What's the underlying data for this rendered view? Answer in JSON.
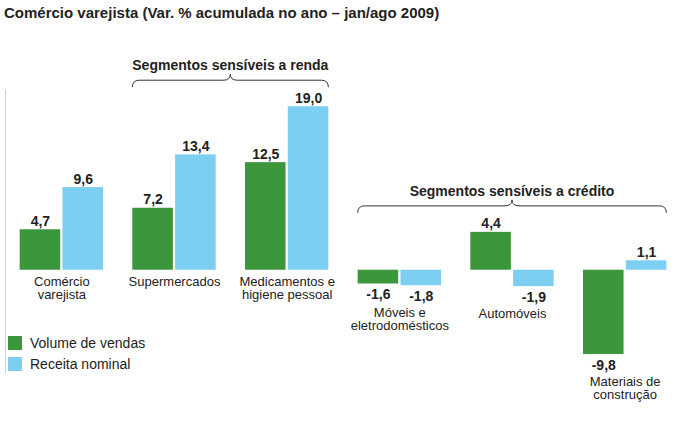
{
  "chart_data": {
    "type": "bar",
    "title": "Comércio varejista (Var. % acumulada no ano – jan/ago 2009)",
    "categories": [
      "Comércio varejista",
      "Supermercados",
      "Medicamentos e higiene pessoal",
      "Móveis e eletrodomésticos",
      "Automóveis",
      "Materiais de construção"
    ],
    "series": [
      {
        "name": "Volume de vendas",
        "color": "#3c963c",
        "values": [
          4.7,
          7.2,
          12.5,
          -1.6,
          4.4,
          -9.8
        ],
        "value_labels": [
          "4,7",
          "7,2",
          "12,5",
          "-1,6",
          "4,4",
          "-9,8"
        ]
      },
      {
        "name": "Receita nominal",
        "color": "#7dcff2",
        "values": [
          9.6,
          13.4,
          19.0,
          -1.8,
          -1.9,
          1.1
        ],
        "value_labels": [
          "9,6",
          "13,4",
          "19,0",
          "-1,8",
          "-1,9",
          "1,1"
        ]
      }
    ],
    "annotations": [
      {
        "text": "Segmentos sensíveis a renda",
        "categories": [
          "Supermercados",
          "Medicamentos e higiene pessoal"
        ]
      },
      {
        "text": "Segmentos sensíveis a crédito",
        "categories": [
          "Móveis e eletrodomésticos",
          "Automóveis",
          "Materiais de construção"
        ]
      }
    ],
    "ylim": [
      -12,
      21
    ],
    "yticks": [],
    "grid": false,
    "data_labels": true,
    "tick_labels": "x",
    "legend": "bottom-left"
  }
}
